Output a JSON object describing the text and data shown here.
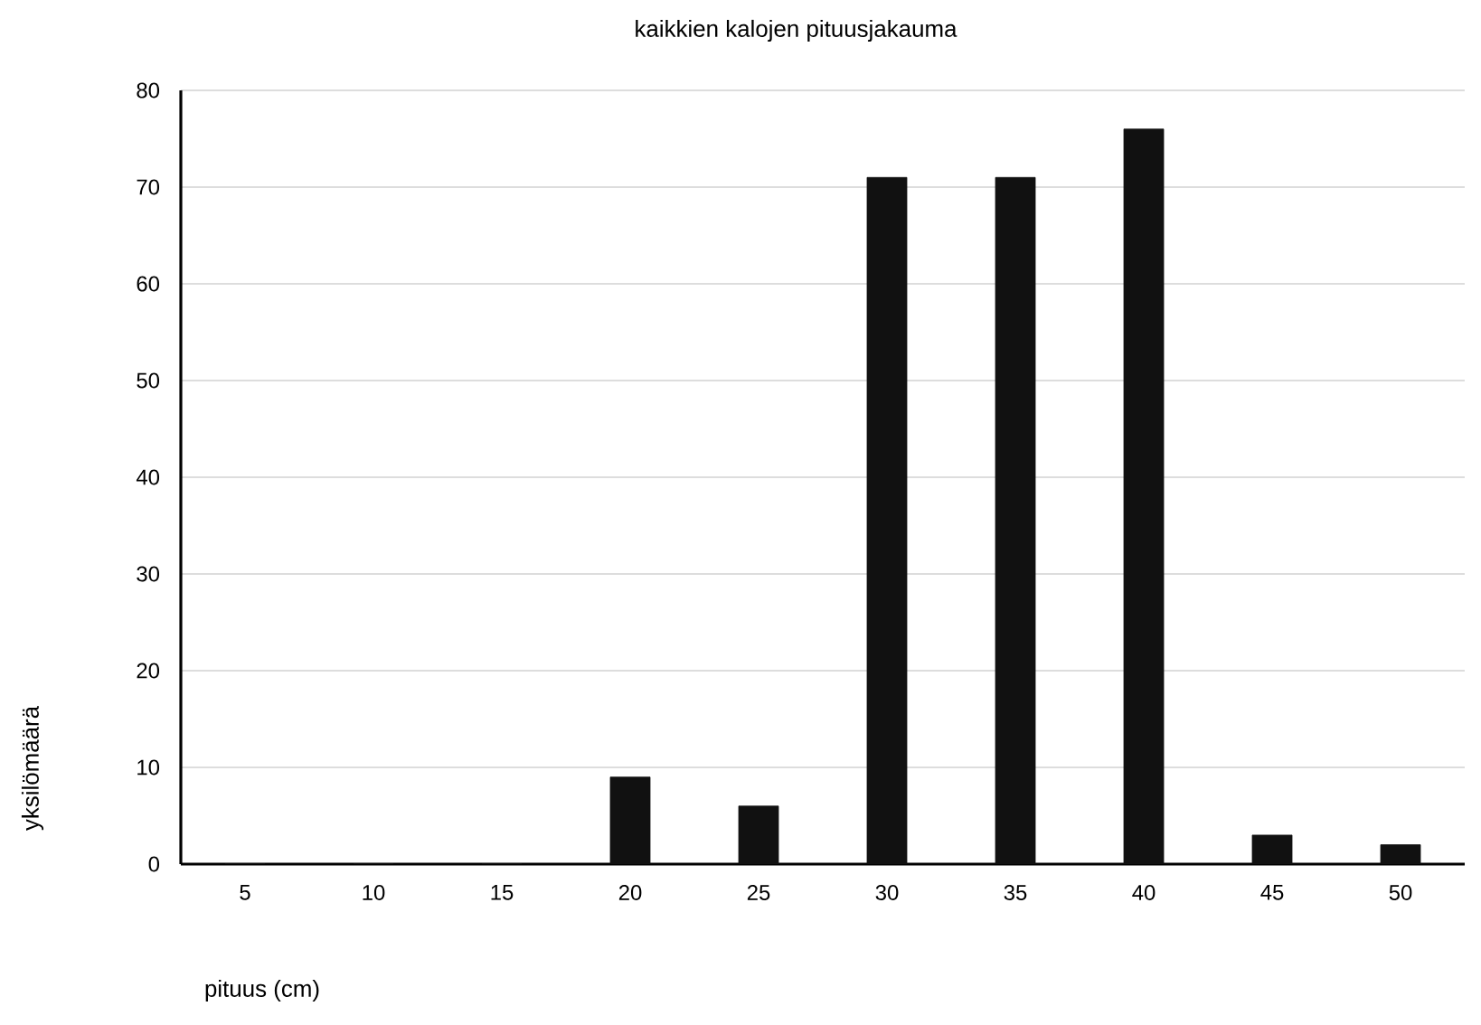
{
  "chart_data": {
    "type": "bar",
    "title": "kaikkien kalojen pituusjakauma",
    "xlabel": "pituus (cm)",
    "ylabel": "yksilömäärä",
    "categories": [
      "5",
      "10",
      "15",
      "20",
      "25",
      "30",
      "35",
      "40",
      "45",
      "50"
    ],
    "values": [
      0,
      0,
      0,
      9,
      6,
      71,
      71,
      76,
      3,
      2
    ],
    "color": "#111111",
    "ylim": [
      0,
      80
    ],
    "yticks": [
      0,
      10,
      20,
      30,
      40,
      50,
      60,
      70,
      80
    ],
    "grid": "y"
  }
}
